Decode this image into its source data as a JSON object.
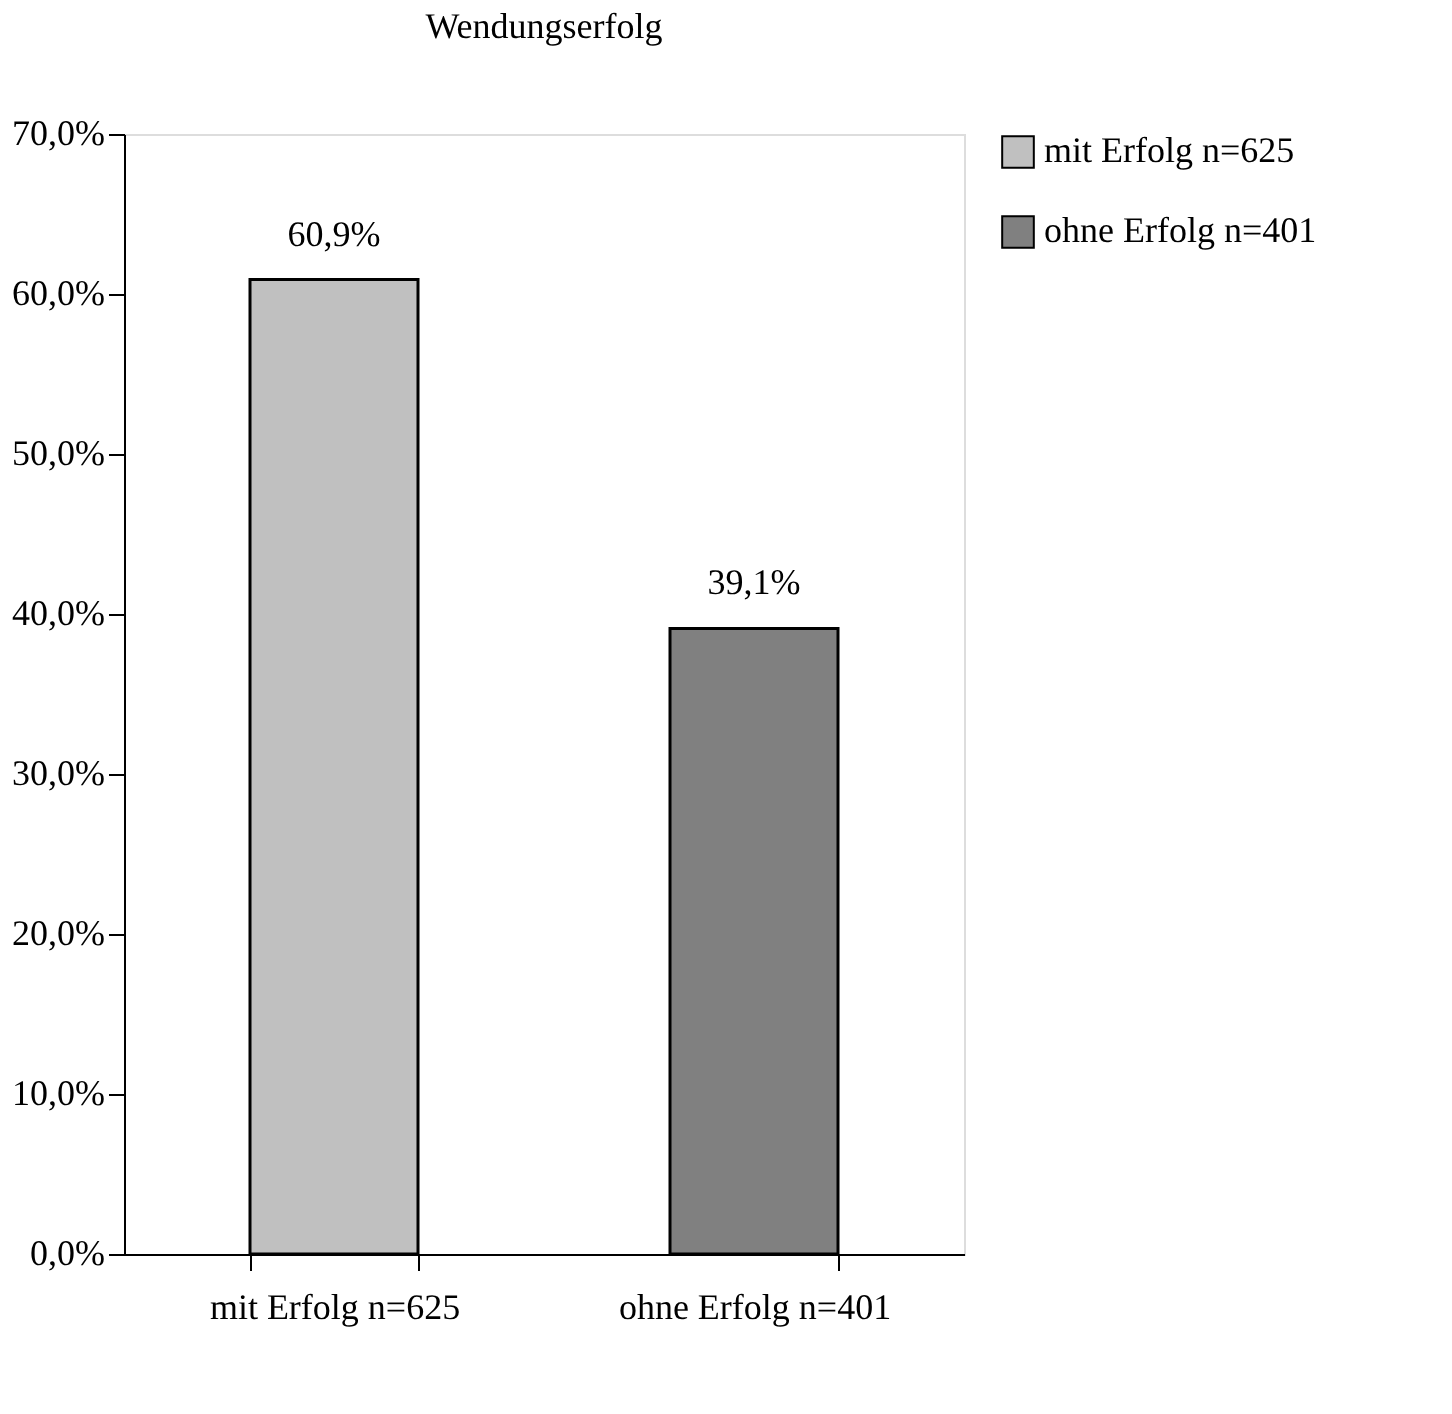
{
  "chart_data": {
    "type": "bar",
    "title": "Wendungserfolg",
    "categories": [
      "mit Erfolg n=625",
      "ohne Erfolg n=401"
    ],
    "series": [
      {
        "name": "mit Erfolg n=625",
        "color": "#c0c0c0",
        "values": [
          60.9,
          null
        ],
        "value_labels": [
          "60,9%",
          null
        ]
      },
      {
        "name": "ohne Erfolg n=401",
        "color": "#808080",
        "values": [
          null,
          39.1
        ],
        "value_labels": [
          null,
          "39,1%"
        ]
      }
    ],
    "ylim": [
      0,
      70
    ],
    "yticks": [
      {
        "value": 0,
        "label": "0,0%"
      },
      {
        "value": 10,
        "label": "10,0%"
      },
      {
        "value": 20,
        "label": "20,0%"
      },
      {
        "value": 30,
        "label": "30,0%"
      },
      {
        "value": 40,
        "label": "40,0%"
      },
      {
        "value": 50,
        "label": "50,0%"
      },
      {
        "value": 60,
        "label": "60,0%"
      },
      {
        "value": 70,
        "label": "70,0%"
      }
    ],
    "grid": false,
    "legend": "right"
  }
}
